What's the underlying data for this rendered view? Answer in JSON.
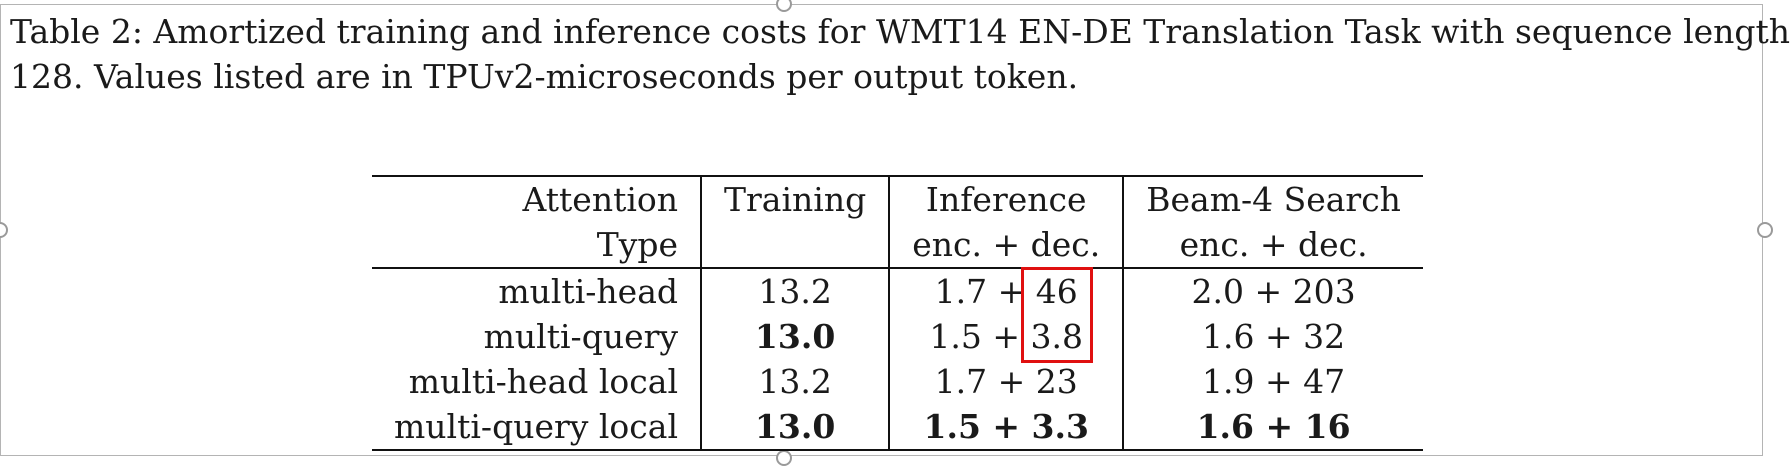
{
  "caption": {
    "line1": "Table 2:  Amortized training and inference costs for WMT14 EN-DE Translation Task with sequence length",
    "line2": "128.  Values listed are in TPUv2-microseconds per output token."
  },
  "table": {
    "headers": {
      "attention_line1": "Attention",
      "attention_line2": "Type",
      "training": "Training",
      "inference_line1": "Inference",
      "inference_line2": "enc. + dec.",
      "beam_line1": "Beam-4 Search",
      "beam_line2": "enc. + dec."
    },
    "rows": [
      {
        "type": "multi-head",
        "training": "13.2",
        "inf_enc": "1.7 +",
        "inf_dec": "46",
        "beam": "2.0 + 203"
      },
      {
        "type": "multi-query",
        "training": "13.0",
        "inf_enc": "1.5 +",
        "inf_dec": "3.8",
        "beam": "1.6 + 32"
      },
      {
        "type": "multi-head local",
        "training": "13.2",
        "inference": "1.7 + 23",
        "beam": "1.9 + 47"
      },
      {
        "type": "multi-query local",
        "training": "13.0",
        "inference": "1.5 + 3.3",
        "beam": "1.6 + 16"
      }
    ]
  },
  "highlight": {
    "color": "#e01010"
  }
}
